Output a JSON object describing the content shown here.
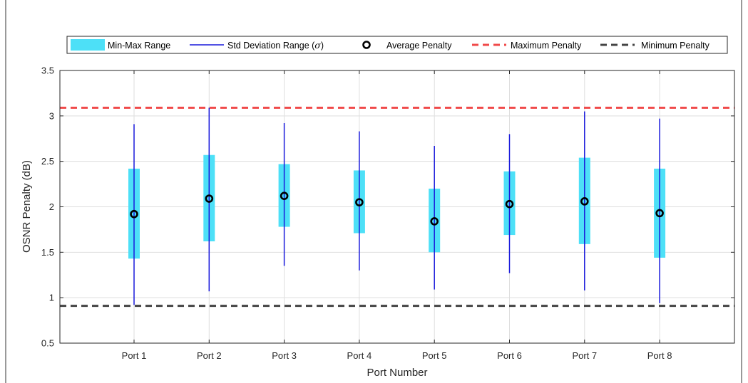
{
  "chart_data": {
    "type": "box",
    "title": "",
    "xlabel": "Port Number",
    "ylabel": "OSNR Penalty (dB)",
    "ylim": [
      0.5,
      3.5
    ],
    "yticks": [
      0.5,
      1,
      1.5,
      2,
      2.5,
      3,
      3.5
    ],
    "grid": true,
    "legend_position": "top",
    "categories": [
      "Port 1",
      "Port 2",
      "Port 3",
      "Port 4",
      "Port 5",
      "Port 6",
      "Port 7",
      "Port 8"
    ],
    "minmax_range": [
      [
        1.43,
        2.42
      ],
      [
        1.62,
        2.57
      ],
      [
        1.78,
        2.47
      ],
      [
        1.71,
        2.4
      ],
      [
        1.5,
        2.2
      ],
      [
        1.69,
        2.39
      ],
      [
        1.59,
        2.54
      ],
      [
        1.44,
        2.42
      ]
    ],
    "std_range": [
      [
        0.92,
        2.91
      ],
      [
        1.07,
        3.09
      ],
      [
        1.35,
        2.92
      ],
      [
        1.3,
        2.83
      ],
      [
        1.09,
        2.67
      ],
      [
        1.27,
        2.8
      ],
      [
        1.08,
        3.05
      ],
      [
        0.94,
        2.97
      ]
    ],
    "average": [
      1.92,
      2.09,
      2.12,
      2.05,
      1.84,
      2.03,
      2.06,
      1.93
    ],
    "max_penalty": 3.09,
    "min_penalty": 0.91,
    "legend": {
      "minmax": "Min-Max Range",
      "std_prefix": "Std Deviation Range (",
      "std_symbol": "σ",
      "std_suffix": ")",
      "average": "Average Penalty",
      "max": "Maximum Penalty",
      "min": "Minimum Penalty"
    },
    "colors": {
      "minmax": "#4de0f7",
      "std": "#1a1adb",
      "average": "#000000",
      "max": "#f04a4a",
      "min": "#444444",
      "grid": "#dedede",
      "axis": "#262626"
    }
  }
}
